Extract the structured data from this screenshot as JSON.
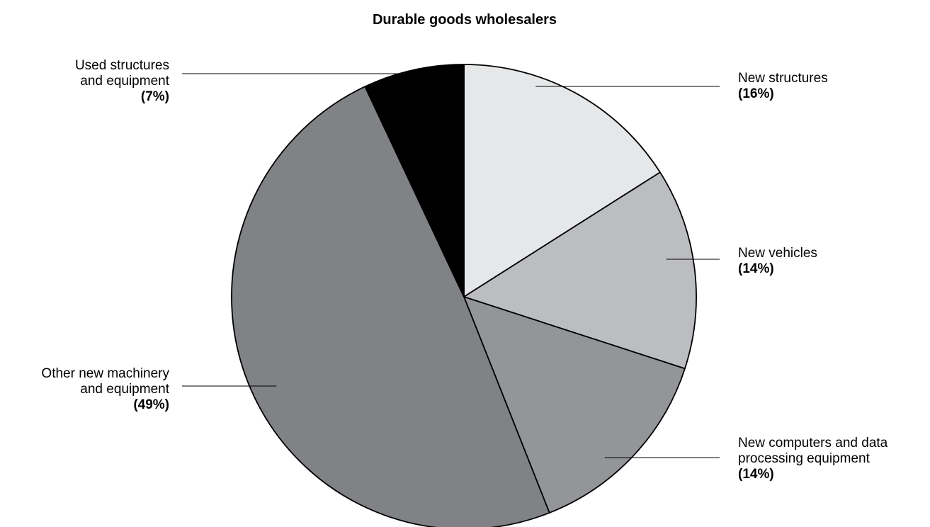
{
  "chart_data": {
    "type": "pie",
    "title": "Durable goods wholesalers",
    "slices": [
      {
        "label_lines": [
          "New structures"
        ],
        "value": 16,
        "value_label": "(16%)",
        "color": "#e6e7e8"
      },
      {
        "label_lines": [
          "New vehicles"
        ],
        "value": 14,
        "value_label": "(14%)",
        "color": "#bcbdc0"
      },
      {
        "label_lines": [
          "New computers and data",
          "processing equipment"
        ],
        "value": 14,
        "value_label": "(14%)",
        "color": "#939598"
      },
      {
        "label_lines": [
          "Other new machinery",
          "and equipment"
        ],
        "value": 49,
        "value_label": "(49%)",
        "color": "#808285"
      },
      {
        "label_lines": [
          "Used structures",
          "and equipment"
        ],
        "value": 7,
        "value_label": "(7%)",
        "color": "#000000"
      }
    ]
  }
}
